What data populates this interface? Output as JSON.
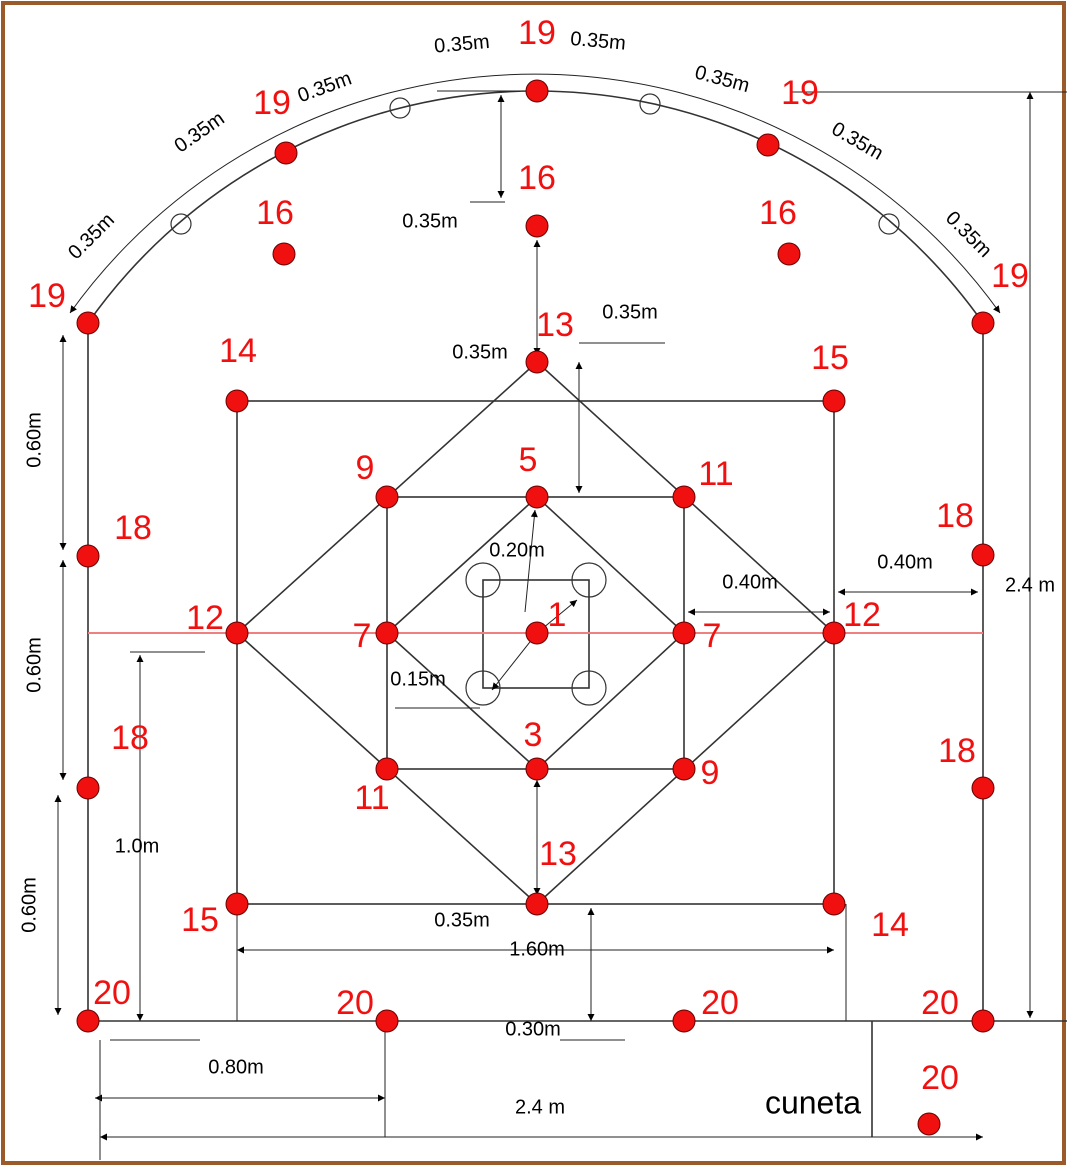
{
  "hole_labels": [
    "19",
    "19",
    "19",
    "19",
    "19",
    "16",
    "16",
    "16",
    "13",
    "13",
    "14",
    "14",
    "15",
    "15",
    "9",
    "9",
    "5",
    "11",
    "11",
    "18",
    "18",
    "18",
    "18",
    "12",
    "12",
    "7",
    "7",
    "1",
    "3",
    "20",
    "20",
    "20",
    "20",
    "20"
  ],
  "dimensions": [
    "0.35m",
    "0.35m",
    "0.35m",
    "0.35m",
    "0.35m",
    "0.35m",
    "0.35m",
    "0.35m",
    "0.35m",
    "0.35m",
    "0.35m",
    "0.20m",
    "0.40m",
    "0.40m",
    "2.4 m",
    "0.15m",
    "0.60m",
    "0.60m",
    "0.60m",
    "1.0m",
    "0.35m",
    "1.60m",
    "0.30m",
    "0.80m",
    "2.4 m"
  ],
  "note": "cuneta"
}
